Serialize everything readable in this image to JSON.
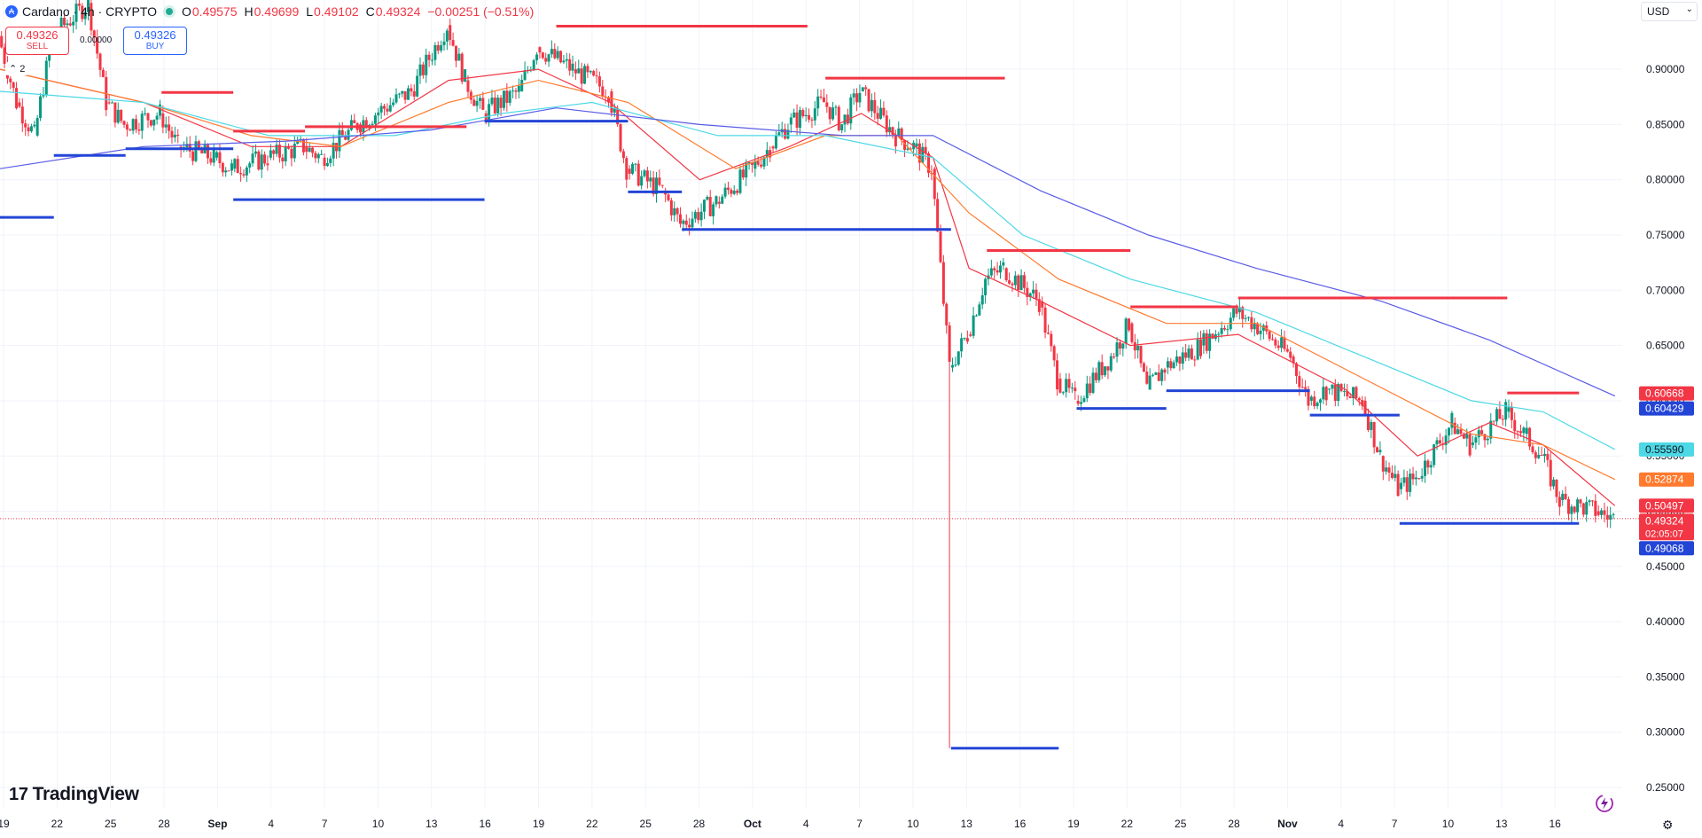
{
  "header": {
    "title": "Cardano · 4h · CRYPTO",
    "symbol_icon": "cardano-coin-icon",
    "ohlc": [
      {
        "k": "O",
        "v": "0.49575"
      },
      {
        "k": "H",
        "v": "0.49699"
      },
      {
        "k": "L",
        "v": "0.49102"
      },
      {
        "k": "C",
        "v": "0.49324"
      },
      {
        "k": "",
        "v": "−0.00251 (−0.51%)"
      }
    ],
    "sell": {
      "price": "0.49326",
      "label": "SELL"
    },
    "buy": {
      "price": "0.49326",
      "label": "BUY"
    },
    "spread": "0.00000",
    "collapse": "2",
    "currency": "USD"
  },
  "branding": {
    "name": "TradingView"
  },
  "colors": {
    "up": "#089981",
    "down": "#f23645",
    "ema_red": "#f23645",
    "ema_orange": "#ff7a2e",
    "ema_cyan": "#4dd8e6",
    "ema_blue": "#5a5ce6",
    "res": "#f23645",
    "sup": "#2345d6"
  },
  "chart_data": {
    "type": "candlestick",
    "title": "Cardano · 4h · CRYPTO",
    "ylim": [
      0.23,
      0.94
    ],
    "y_ticks": [
      0.25,
      0.3,
      0.35,
      0.4,
      0.45,
      0.5,
      0.55,
      0.6,
      0.65,
      0.7,
      0.75,
      0.8,
      0.85,
      0.9
    ],
    "x_ticks": [
      "19",
      "22",
      "25",
      "28",
      "Sep",
      "4",
      "7",
      "10",
      "13",
      "16",
      "19",
      "22",
      "25",
      "28",
      "Oct",
      "4",
      "7",
      "10",
      "13",
      "16",
      "19",
      "22",
      "25",
      "28",
      "Nov",
      "4",
      "7",
      "10",
      "13",
      "16"
    ],
    "x_range": [
      "2025-08-19",
      "2025-11-18"
    ],
    "price_path": [
      [
        "2025-08-19",
        0.93
      ],
      [
        "2025-08-20",
        0.87
      ],
      [
        "2025-08-21",
        0.84
      ],
      [
        "2025-08-22",
        0.93
      ],
      [
        "2025-08-24",
        0.96
      ],
      [
        "2025-08-25",
        0.87
      ],
      [
        "2025-08-26",
        0.85
      ],
      [
        "2025-08-28",
        0.86
      ],
      [
        "2025-08-29",
        0.83
      ],
      [
        "2025-08-31",
        0.82
      ],
      [
        "2025-09-01",
        0.81
      ],
      [
        "2025-09-03",
        0.82
      ],
      [
        "2025-09-05",
        0.83
      ],
      [
        "2025-09-06",
        0.82
      ],
      [
        "2025-09-08",
        0.85
      ],
      [
        "2025-09-10",
        0.87
      ],
      [
        "2025-09-11",
        0.88
      ],
      [
        "2025-09-13",
        0.94
      ],
      [
        "2025-09-14",
        0.89
      ],
      [
        "2025-09-15",
        0.86
      ],
      [
        "2025-09-17",
        0.88
      ],
      [
        "2025-09-18",
        0.92
      ],
      [
        "2025-09-20",
        0.9
      ],
      [
        "2025-09-22",
        0.88
      ],
      [
        "2025-09-23",
        0.81
      ],
      [
        "2025-09-25",
        0.79
      ],
      [
        "2025-09-26",
        0.76
      ],
      [
        "2025-09-28",
        0.78
      ],
      [
        "2025-09-30",
        0.81
      ],
      [
        "2025-10-01",
        0.83
      ],
      [
        "2025-10-02",
        0.85
      ],
      [
        "2025-10-04",
        0.87
      ],
      [
        "2025-10-05",
        0.85
      ],
      [
        "2025-10-06",
        0.88
      ],
      [
        "2025-10-08",
        0.84
      ],
      [
        "2025-10-09",
        0.83
      ],
      [
        "2025-10-10",
        0.81
      ],
      [
        "2025-10-11",
        0.63
      ],
      [
        "2025-10-12",
        0.66
      ],
      [
        "2025-10-13",
        0.71
      ],
      [
        "2025-10-14",
        0.72
      ],
      [
        "2025-10-16",
        0.69
      ],
      [
        "2025-10-17",
        0.62
      ],
      [
        "2025-10-18",
        0.6
      ],
      [
        "2025-10-20",
        0.64
      ],
      [
        "2025-10-21",
        0.67
      ],
      [
        "2025-10-22",
        0.61
      ],
      [
        "2025-10-23",
        0.63
      ],
      [
        "2025-10-25",
        0.65
      ],
      [
        "2025-10-27",
        0.68
      ],
      [
        "2025-10-28",
        0.67
      ],
      [
        "2025-10-30",
        0.64
      ],
      [
        "2025-10-31",
        0.6
      ],
      [
        "2025-11-01",
        0.61
      ],
      [
        "2025-11-03",
        0.6
      ],
      [
        "2025-11-04",
        0.55
      ],
      [
        "2025-11-05",
        0.52
      ],
      [
        "2025-11-06",
        0.53
      ],
      [
        "2025-11-08",
        0.58
      ],
      [
        "2025-11-09",
        0.56
      ],
      [
        "2025-11-11",
        0.59
      ],
      [
        "2025-11-12",
        0.57
      ],
      [
        "2025-11-13",
        0.55
      ],
      [
        "2025-11-14",
        0.51
      ],
      [
        "2025-11-16",
        0.5
      ],
      [
        "2025-11-17",
        0.49324
      ]
    ],
    "emas": [
      {
        "color": "ema_red",
        "path": [
          [
            "2025-08-19",
            0.9
          ],
          [
            "2025-08-27",
            0.87
          ],
          [
            "2025-09-02",
            0.83
          ],
          [
            "2025-09-07",
            0.83
          ],
          [
            "2025-09-13",
            0.89
          ],
          [
            "2025-09-18",
            0.9
          ],
          [
            "2025-09-22",
            0.87
          ],
          [
            "2025-09-27",
            0.8
          ],
          [
            "2025-10-02",
            0.83
          ],
          [
            "2025-10-06",
            0.86
          ],
          [
            "2025-10-10",
            0.82
          ],
          [
            "2025-10-12",
            0.72
          ],
          [
            "2025-10-16",
            0.69
          ],
          [
            "2025-10-21",
            0.65
          ],
          [
            "2025-10-27",
            0.66
          ],
          [
            "2025-11-02",
            0.61
          ],
          [
            "2025-11-06",
            0.55
          ],
          [
            "2025-11-10",
            0.58
          ],
          [
            "2025-11-13",
            0.56
          ],
          [
            "2025-11-17",
            0.50497
          ]
        ]
      },
      {
        "color": "ema_orange",
        "path": [
          [
            "2025-08-19",
            0.9
          ],
          [
            "2025-08-27",
            0.87
          ],
          [
            "2025-09-02",
            0.84
          ],
          [
            "2025-09-07",
            0.83
          ],
          [
            "2025-09-13",
            0.87
          ],
          [
            "2025-09-18",
            0.89
          ],
          [
            "2025-09-23",
            0.87
          ],
          [
            "2025-09-29",
            0.81
          ],
          [
            "2025-10-04",
            0.84
          ],
          [
            "2025-10-08",
            0.84
          ],
          [
            "2025-10-12",
            0.77
          ],
          [
            "2025-10-17",
            0.71
          ],
          [
            "2025-10-23",
            0.67
          ],
          [
            "2025-10-28",
            0.67
          ],
          [
            "2025-11-03",
            0.62
          ],
          [
            "2025-11-09",
            0.57
          ],
          [
            "2025-11-13",
            0.56
          ],
          [
            "2025-11-17",
            0.52874
          ]
        ]
      },
      {
        "color": "ema_cyan",
        "path": [
          [
            "2025-08-19",
            0.88
          ],
          [
            "2025-08-27",
            0.87
          ],
          [
            "2025-09-03",
            0.84
          ],
          [
            "2025-09-10",
            0.84
          ],
          [
            "2025-09-16",
            0.86
          ],
          [
            "2025-09-21",
            0.87
          ],
          [
            "2025-09-28",
            0.84
          ],
          [
            "2025-10-04",
            0.84
          ],
          [
            "2025-10-10",
            0.82
          ],
          [
            "2025-10-15",
            0.75
          ],
          [
            "2025-10-21",
            0.71
          ],
          [
            "2025-10-28",
            0.68
          ],
          [
            "2025-11-03",
            0.64
          ],
          [
            "2025-11-09",
            0.6
          ],
          [
            "2025-11-13",
            0.59
          ],
          [
            "2025-11-17",
            0.5559
          ]
        ]
      },
      {
        "color": "ema_blue",
        "path": [
          [
            "2025-08-19",
            0.81
          ],
          [
            "2025-08-27",
            0.83
          ],
          [
            "2025-09-04",
            0.835
          ],
          [
            "2025-09-12",
            0.845
          ],
          [
            "2025-09-19",
            0.865
          ],
          [
            "2025-09-27",
            0.85
          ],
          [
            "2025-10-05",
            0.84
          ],
          [
            "2025-10-10",
            0.84
          ],
          [
            "2025-10-16",
            0.79
          ],
          [
            "2025-10-22",
            0.75
          ],
          [
            "2025-10-28",
            0.72
          ],
          [
            "2025-11-04",
            0.69
          ],
          [
            "2025-11-10",
            0.655
          ],
          [
            "2025-11-17",
            0.60429
          ]
        ]
      }
    ],
    "levels": [
      {
        "kind": "res",
        "price": 0.939,
        "from": "2025-09-19",
        "to": "2025-10-03"
      },
      {
        "kind": "res",
        "price": 0.892,
        "from": "2025-10-04",
        "to": "2025-10-14"
      },
      {
        "kind": "res",
        "price": 0.879,
        "from": "2025-08-28",
        "to": "2025-09-01"
      },
      {
        "kind": "res",
        "price": 0.848,
        "from": "2025-09-05",
        "to": "2025-09-14"
      },
      {
        "kind": "res",
        "price": 0.844,
        "from": "2025-09-01",
        "to": "2025-09-05"
      },
      {
        "kind": "res",
        "price": 0.736,
        "from": "2025-10-13",
        "to": "2025-10-21"
      },
      {
        "kind": "res",
        "price": 0.693,
        "from": "2025-10-27",
        "to": "2025-11-11"
      },
      {
        "kind": "res",
        "price": 0.685,
        "from": "2025-10-21",
        "to": "2025-10-27"
      },
      {
        "kind": "res",
        "price": 0.607,
        "from": "2025-11-11",
        "to": "2025-11-15"
      },
      {
        "kind": "sup",
        "price": 0.853,
        "from": "2025-09-15",
        "to": "2025-09-23"
      },
      {
        "kind": "sup",
        "price": 0.828,
        "from": "2025-08-26",
        "to": "2025-09-01"
      },
      {
        "kind": "sup",
        "price": 0.822,
        "from": "2025-08-22",
        "to": "2025-08-26"
      },
      {
        "kind": "sup",
        "price": 0.789,
        "from": "2025-09-23",
        "to": "2025-09-26"
      },
      {
        "kind": "sup",
        "price": 0.782,
        "from": "2025-09-01",
        "to": "2025-09-15"
      },
      {
        "kind": "sup",
        "price": 0.766,
        "from": "2025-08-19",
        "to": "2025-08-22"
      },
      {
        "kind": "sup",
        "price": 0.755,
        "from": "2025-09-26",
        "to": "2025-10-11"
      },
      {
        "kind": "sup",
        "price": 0.609,
        "from": "2025-10-23",
        "to": "2025-10-31"
      },
      {
        "kind": "sup",
        "price": 0.593,
        "from": "2025-10-18",
        "to": "2025-10-23"
      },
      {
        "kind": "sup",
        "price": 0.587,
        "from": "2025-10-31",
        "to": "2025-11-05"
      },
      {
        "kind": "sup",
        "price": 0.489,
        "from": "2025-11-05",
        "to": "2025-11-15"
      },
      {
        "kind": "sup",
        "price": 0.2855,
        "from": "2025-10-11",
        "to": "2025-10-17"
      }
    ],
    "price_labels": [
      {
        "value": "0.60668",
        "price": 0.60668,
        "bg": "#f23645",
        "fg": "#ffffff"
      },
      {
        "value": "0.60429",
        "price": 0.60429,
        "bg": "#2345d6",
        "fg": "#ffffff"
      },
      {
        "value": "0.55590",
        "price": 0.5559,
        "bg": "#4dd8e6",
        "fg": "#131722"
      },
      {
        "value": "0.52874",
        "price": 0.52874,
        "bg": "#ff7a2e",
        "fg": "#ffffff"
      },
      {
        "value": "0.50497",
        "price": 0.50497,
        "bg": "#f23645",
        "fg": "#ffffff"
      },
      {
        "value": "0.49324",
        "price": 0.49324,
        "bg": "#f23645",
        "fg": "#ffffff",
        "sub": "02:05:07"
      },
      {
        "value": "0.49068",
        "price": 0.49068,
        "bg": "#2345d6",
        "fg": "#ffffff"
      }
    ],
    "last_price": 0.49324
  }
}
